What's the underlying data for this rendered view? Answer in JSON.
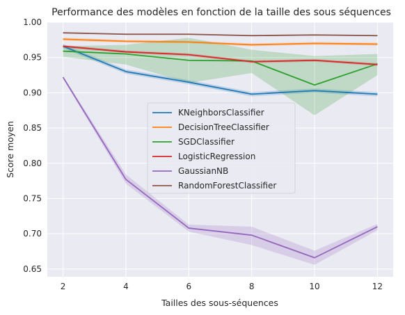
{
  "chart_data": {
    "type": "line",
    "title": "Performance des modèles en fonction de la taille des sous séquences",
    "xlabel": "Tailles des sous-séquences",
    "ylabel": "Score moyen",
    "x": [
      2,
      4,
      6,
      8,
      10,
      12
    ],
    "xlim": [
      1.5,
      12.5
    ],
    "ylim": [
      0.639,
      1.0
    ],
    "xticks": [
      "2",
      "4",
      "6",
      "8",
      "10",
      "12"
    ],
    "yticks": [
      "0.65",
      "0.70",
      "0.75",
      "0.80",
      "0.85",
      "0.90",
      "0.95",
      "1.00"
    ],
    "grid": true,
    "legend_position": "center",
    "background": "#eaeaf2",
    "series": [
      {
        "name": "KNeighborsClassifier",
        "color": "#1f77b4",
        "values": [
          0.966,
          0.93,
          0.915,
          0.898,
          0.903,
          0.898
        ],
        "lower": [
          0.963,
          0.927,
          0.912,
          0.895,
          0.9,
          0.895
        ],
        "upper": [
          0.969,
          0.933,
          0.918,
          0.901,
          0.906,
          0.901
        ]
      },
      {
        "name": "DecisionTreeClassifier",
        "color": "#ff7f0e",
        "values": [
          0.976,
          0.973,
          0.972,
          0.968,
          0.97,
          0.969
        ],
        "lower": [
          0.974,
          0.971,
          0.97,
          0.966,
          0.968,
          0.967
        ],
        "upper": [
          0.978,
          0.975,
          0.974,
          0.97,
          0.972,
          0.971
        ]
      },
      {
        "name": "SGDClassifier",
        "color": "#2ca02c",
        "values": [
          0.959,
          0.955,
          0.946,
          0.945,
          0.911,
          0.941
        ],
        "lower": [
          0.951,
          0.94,
          0.914,
          0.928,
          0.868,
          0.925
        ],
        "upper": [
          0.966,
          0.968,
          0.978,
          0.961,
          0.952,
          0.955
        ]
      },
      {
        "name": "LogisticRegression",
        "color": "#d62728",
        "values": [
          0.966,
          0.958,
          0.954,
          0.944,
          0.946,
          0.94
        ],
        "lower": [
          0.964,
          0.956,
          0.952,
          0.942,
          0.944,
          0.938
        ],
        "upper": [
          0.968,
          0.96,
          0.956,
          0.946,
          0.948,
          0.942
        ]
      },
      {
        "name": "GaussianNB",
        "color": "#9467bd",
        "values": [
          0.922,
          0.777,
          0.708,
          0.698,
          0.666,
          0.71
        ],
        "lower": [
          0.92,
          0.771,
          0.703,
          0.684,
          0.656,
          0.705
        ],
        "upper": [
          0.924,
          0.784,
          0.713,
          0.71,
          0.676,
          0.714
        ]
      },
      {
        "name": "RandomForestClassifier",
        "color": "#8c564b",
        "values": [
          0.985,
          0.983,
          0.983,
          0.981,
          0.982,
          0.981
        ],
        "lower": [
          0.984,
          0.982,
          0.982,
          0.98,
          0.981,
          0.98
        ],
        "upper": [
          0.986,
          0.984,
          0.984,
          0.982,
          0.983,
          0.982
        ]
      }
    ]
  }
}
